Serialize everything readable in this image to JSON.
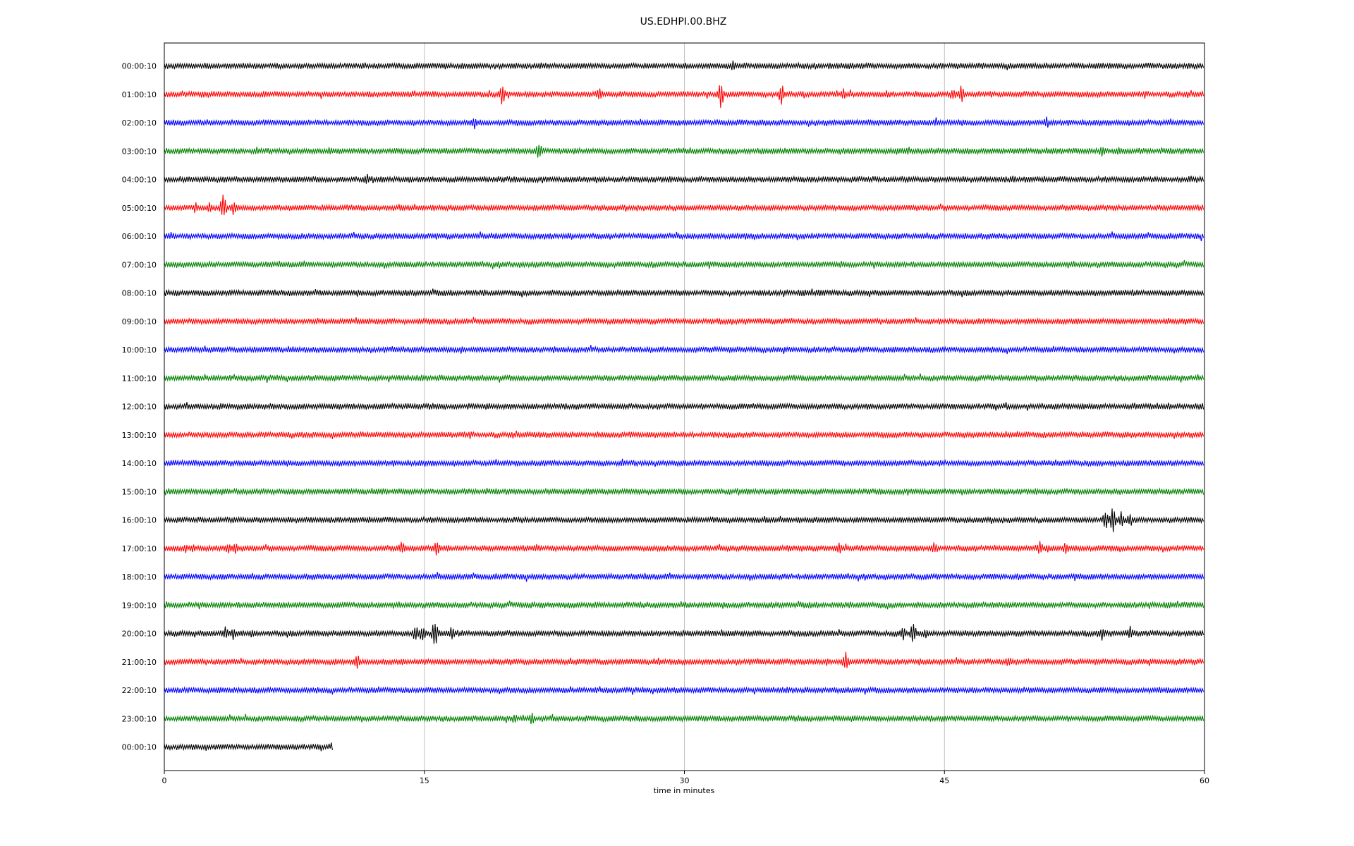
{
  "chart_data": {
    "type": "line",
    "title": "US.EDHPI.00.BHZ",
    "xlabel": "time in minutes",
    "ylabel": "",
    "xlim": [
      0,
      60
    ],
    "xticks": [
      "0",
      "15",
      "30",
      "45",
      "60"
    ],
    "xtick_values": [
      0,
      15,
      30,
      45,
      60
    ],
    "grid": "vertical",
    "colors": [
      "#000000",
      "#ff0000",
      "#0000ff",
      "#008000"
    ],
    "rows": [
      {
        "label": "00:00:10",
        "color": "#000000",
        "end": 60,
        "events": [
          {
            "t": 32.8,
            "a": 7
          },
          {
            "t": 33.5,
            "a": 4
          },
          {
            "t": 34.6,
            "a": 4
          },
          {
            "t": 37.5,
            "a": 4
          }
        ]
      },
      {
        "label": "01:00:10",
        "color": "#ff0000",
        "end": 60,
        "events": [
          {
            "t": 5.8,
            "a": 4
          },
          {
            "t": 19.5,
            "a": 15
          },
          {
            "t": 25.1,
            "a": 9
          },
          {
            "t": 32.1,
            "a": 20
          },
          {
            "t": 35.6,
            "a": 16
          },
          {
            "t": 39.2,
            "a": 7
          },
          {
            "t": 45.5,
            "a": 9
          },
          {
            "t": 46.0,
            "a": 13
          },
          {
            "t": 47.0,
            "a": 5
          }
        ]
      },
      {
        "label": "02:00:10",
        "color": "#0000ff",
        "end": 60,
        "events": [
          {
            "t": 17.9,
            "a": 8
          },
          {
            "t": 44.5,
            "a": 6
          },
          {
            "t": 50.9,
            "a": 7
          }
        ]
      },
      {
        "label": "03:00:10",
        "color": "#008000",
        "end": 60,
        "events": [
          {
            "t": 9.6,
            "a": 6
          },
          {
            "t": 21.6,
            "a": 12
          },
          {
            "t": 42.9,
            "a": 7
          },
          {
            "t": 54.1,
            "a": 9
          },
          {
            "t": 55.0,
            "a": 5
          }
        ]
      },
      {
        "label": "04:00:10",
        "color": "#000000",
        "end": 60,
        "events": [
          {
            "t": 6.8,
            "a": 4
          },
          {
            "t": 11.7,
            "a": 8
          },
          {
            "t": 48.9,
            "a": 4
          },
          {
            "t": 59.2,
            "a": 4
          }
        ]
      },
      {
        "label": "05:00:10",
        "color": "#ff0000",
        "end": 60,
        "events": [
          {
            "t": 1.8,
            "a": 7
          },
          {
            "t": 2.6,
            "a": 9
          },
          {
            "t": 3.4,
            "a": 20
          },
          {
            "t": 4.0,
            "a": 10
          }
        ]
      },
      {
        "label": "06:00:10",
        "color": "#0000ff",
        "end": 60,
        "events": []
      },
      {
        "label": "07:00:10",
        "color": "#008000",
        "end": 60,
        "events": []
      },
      {
        "label": "08:00:10",
        "color": "#000000",
        "end": 60,
        "events": [
          {
            "t": 26.5,
            "a": 3
          },
          {
            "t": 37.8,
            "a": 3
          }
        ]
      },
      {
        "label": "09:00:10",
        "color": "#ff0000",
        "end": 60,
        "events": []
      },
      {
        "label": "10:00:10",
        "color": "#0000ff",
        "end": 60,
        "events": []
      },
      {
        "label": "11:00:10",
        "color": "#008000",
        "end": 60,
        "events": [
          {
            "t": 9.8,
            "a": 3
          }
        ]
      },
      {
        "label": "12:00:10",
        "color": "#000000",
        "end": 60,
        "events": []
      },
      {
        "label": "13:00:10",
        "color": "#ff0000",
        "end": 60,
        "events": [
          {
            "t": 49.2,
            "a": 4
          }
        ]
      },
      {
        "label": "14:00:10",
        "color": "#0000ff",
        "end": 60,
        "events": []
      },
      {
        "label": "15:00:10",
        "color": "#008000",
        "end": 60,
        "events": [
          {
            "t": 12.6,
            "a": 3
          }
        ]
      },
      {
        "label": "16:00:10",
        "color": "#000000",
        "end": 60,
        "events": [
          {
            "t": 26.7,
            "a": 3
          },
          {
            "t": 31.0,
            "a": 3
          },
          {
            "t": 54.3,
            "a": 12
          },
          {
            "t": 54.7,
            "a": 20
          },
          {
            "t": 55.2,
            "a": 14
          },
          {
            "t": 55.7,
            "a": 9
          }
        ]
      },
      {
        "label": "17:00:10",
        "color": "#ff0000",
        "end": 60,
        "events": [
          {
            "t": 1.2,
            "a": 6
          },
          {
            "t": 1.7,
            "a": 7
          },
          {
            "t": 3.7,
            "a": 8
          },
          {
            "t": 4.1,
            "a": 6
          },
          {
            "t": 13.7,
            "a": 9
          },
          {
            "t": 15.7,
            "a": 11
          },
          {
            "t": 16.3,
            "a": 5
          },
          {
            "t": 36.0,
            "a": 4
          },
          {
            "t": 38.9,
            "a": 8
          },
          {
            "t": 44.4,
            "a": 7
          },
          {
            "t": 47.9,
            "a": 4
          },
          {
            "t": 50.5,
            "a": 9
          },
          {
            "t": 51.0,
            "a": 6
          },
          {
            "t": 52.0,
            "a": 8
          }
        ]
      },
      {
        "label": "18:00:10",
        "color": "#0000ff",
        "end": 60,
        "events": []
      },
      {
        "label": "19:00:10",
        "color": "#008000",
        "end": 60,
        "events": [
          {
            "t": 37.2,
            "a": 3
          }
        ]
      },
      {
        "label": "20:00:10",
        "color": "#000000",
        "end": 60,
        "events": [
          {
            "t": 3.5,
            "a": 9
          },
          {
            "t": 4.0,
            "a": 9
          },
          {
            "t": 5.0,
            "a": 5
          },
          {
            "t": 14.5,
            "a": 11
          },
          {
            "t": 14.9,
            "a": 13
          },
          {
            "t": 15.6,
            "a": 20
          },
          {
            "t": 16.6,
            "a": 10
          },
          {
            "t": 42.6,
            "a": 11
          },
          {
            "t": 43.2,
            "a": 15
          },
          {
            "t": 43.9,
            "a": 8
          },
          {
            "t": 54.1,
            "a": 11
          },
          {
            "t": 55.7,
            "a": 10
          }
        ]
      },
      {
        "label": "21:00:10",
        "color": "#ff0000",
        "end": 60,
        "events": [
          {
            "t": 9.9,
            "a": 5
          },
          {
            "t": 11.1,
            "a": 11
          },
          {
            "t": 28.5,
            "a": 4
          },
          {
            "t": 39.3,
            "a": 14
          },
          {
            "t": 48.7,
            "a": 8
          }
        ]
      },
      {
        "label": "22:00:10",
        "color": "#0000ff",
        "end": 60,
        "events": []
      },
      {
        "label": "23:00:10",
        "color": "#008000",
        "end": 60,
        "events": [
          {
            "t": 20.2,
            "a": 6
          },
          {
            "t": 21.2,
            "a": 8
          }
        ]
      },
      {
        "label": "00:00:10",
        "color": "#000000",
        "end": 9.7,
        "events": [
          {
            "t": 2.4,
            "a": 4
          }
        ]
      }
    ]
  }
}
